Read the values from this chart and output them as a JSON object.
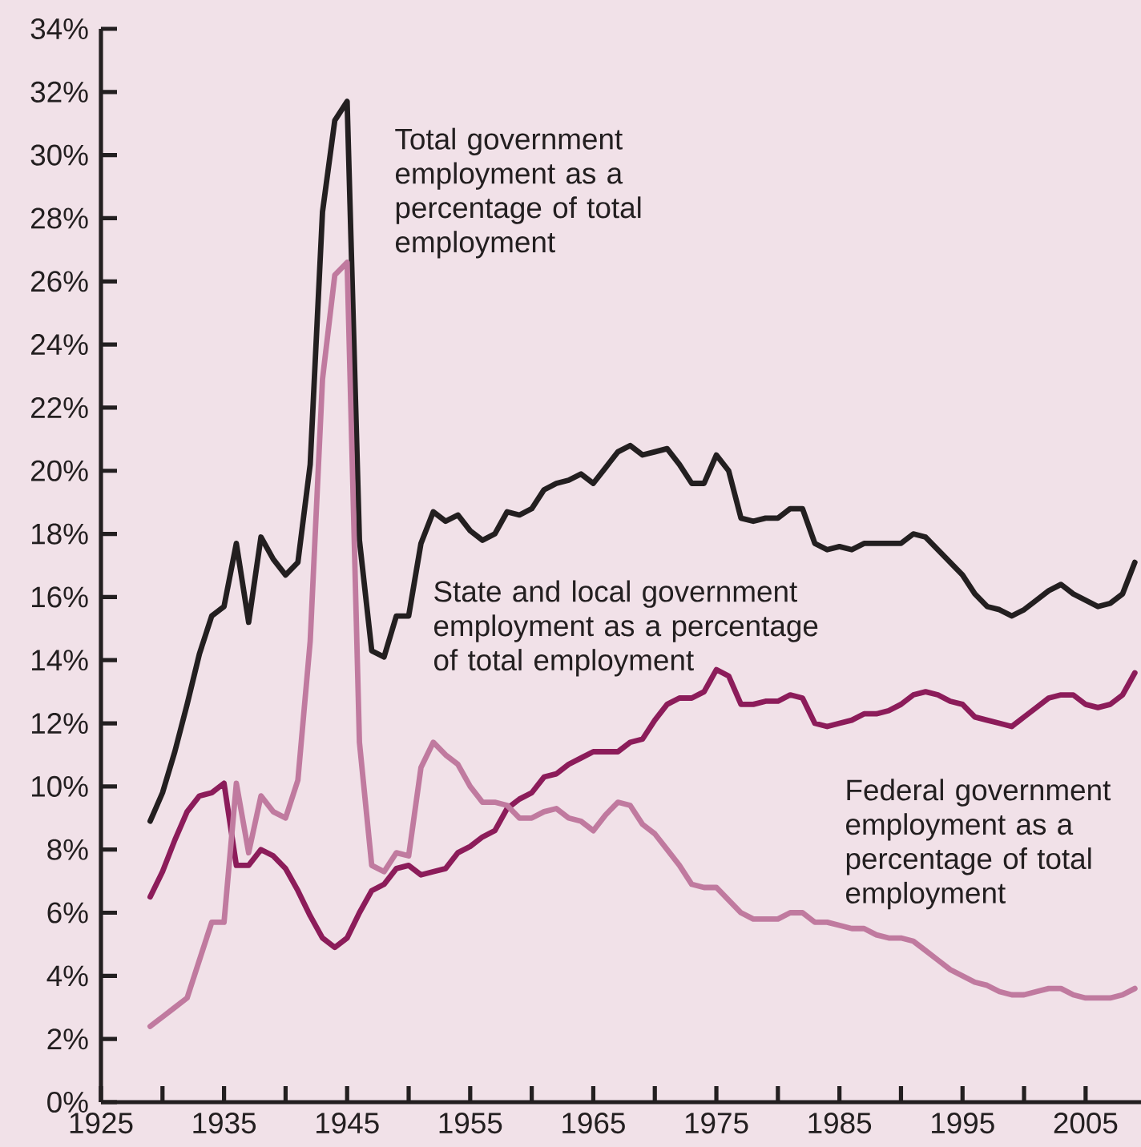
{
  "chart_data": {
    "type": "line",
    "x": [
      1929,
      1930,
      1931,
      1932,
      1933,
      1934,
      1935,
      1936,
      1937,
      1938,
      1939,
      1940,
      1941,
      1942,
      1943,
      1944,
      1945,
      1946,
      1947,
      1948,
      1949,
      1950,
      1951,
      1952,
      1953,
      1954,
      1955,
      1956,
      1957,
      1958,
      1959,
      1960,
      1961,
      1962,
      1963,
      1964,
      1965,
      1966,
      1967,
      1968,
      1969,
      1970,
      1971,
      1972,
      1973,
      1974,
      1975,
      1976,
      1977,
      1978,
      1979,
      1980,
      1981,
      1982,
      1983,
      1984,
      1985,
      1986,
      1987,
      1988,
      1989,
      1990,
      1991,
      1992,
      1993,
      1994,
      1995,
      1996,
      1997,
      1998,
      1999,
      2000,
      2001,
      2002,
      2003,
      2004,
      2005,
      2006,
      2007,
      2008,
      2009
    ],
    "series": [
      {
        "name": "Total government employment as a percentage of total employment",
        "color": "#231f20",
        "values": [
          8.9,
          9.8,
          11.1,
          12.6,
          14.2,
          15.4,
          15.7,
          17.7,
          15.2,
          17.9,
          17.2,
          16.7,
          17.1,
          20.2,
          28.2,
          31.1,
          31.7,
          17.8,
          14.3,
          14.1,
          15.4,
          15.4,
          17.7,
          18.7,
          18.4,
          18.6,
          18.1,
          17.8,
          18.0,
          18.7,
          18.6,
          18.8,
          19.4,
          19.6,
          19.7,
          19.9,
          19.6,
          20.1,
          20.6,
          20.8,
          20.5,
          20.6,
          20.7,
          20.2,
          19.6,
          19.6,
          20.5,
          20.0,
          18.5,
          18.4,
          18.5,
          18.5,
          18.8,
          18.8,
          17.7,
          17.5,
          17.6,
          17.5,
          17.7,
          17.7,
          17.7,
          17.7,
          18.0,
          17.9,
          17.5,
          17.1,
          16.7,
          16.1,
          15.7,
          15.6,
          15.4,
          15.6,
          15.9,
          16.2,
          16.4,
          16.1,
          15.9,
          15.7,
          15.8,
          16.1,
          17.1
        ]
      },
      {
        "name": "State and local government employment as a percentage of total employment",
        "color": "#8c1c5a",
        "values": [
          6.5,
          7.3,
          8.3,
          9.2,
          9.7,
          9.8,
          10.1,
          7.5,
          7.5,
          8.0,
          7.8,
          7.4,
          6.7,
          5.9,
          5.2,
          4.9,
          5.2,
          6.0,
          6.7,
          6.9,
          7.4,
          7.5,
          7.2,
          7.3,
          7.4,
          7.9,
          8.1,
          8.4,
          8.6,
          9.3,
          9.6,
          9.8,
          10.3,
          10.4,
          10.7,
          10.9,
          11.1,
          11.1,
          11.1,
          11.4,
          11.5,
          12.1,
          12.6,
          12.8,
          12.8,
          13.0,
          13.7,
          13.5,
          12.6,
          12.6,
          12.7,
          12.7,
          12.9,
          12.8,
          12.0,
          11.9,
          12.0,
          12.1,
          12.3,
          12.3,
          12.4,
          12.6,
          12.9,
          13.0,
          12.9,
          12.7,
          12.6,
          12.2,
          12.1,
          12.0,
          11.9,
          12.2,
          12.5,
          12.8,
          12.9,
          12.9,
          12.6,
          12.5,
          12.6,
          12.9,
          13.6
        ]
      },
      {
        "name": "Federal government employment as a percentage of total employment",
        "color": "#c07a9f",
        "values": [
          2.4,
          2.7,
          3.0,
          3.3,
          4.5,
          5.7,
          5.7,
          10.1,
          7.9,
          9.7,
          9.2,
          9.0,
          10.2,
          14.6,
          22.9,
          26.2,
          26.6,
          11.4,
          7.5,
          7.3,
          7.9,
          7.8,
          10.6,
          11.4,
          11.0,
          10.7,
          10.0,
          9.5,
          9.5,
          9.4,
          9.0,
          9.0,
          9.2,
          9.3,
          9.0,
          8.9,
          8.6,
          9.1,
          9.5,
          9.4,
          8.8,
          8.5,
          8.0,
          7.5,
          6.9,
          6.8,
          6.8,
          6.4,
          6.0,
          5.8,
          5.8,
          5.8,
          6.0,
          6.0,
          5.7,
          5.7,
          5.6,
          5.5,
          5.5,
          5.3,
          5.2,
          5.2,
          5.1,
          4.8,
          4.5,
          4.2,
          4.0,
          3.8,
          3.7,
          3.5,
          3.4,
          3.4,
          3.5,
          3.6,
          3.6,
          3.4,
          3.3,
          3.3,
          3.3,
          3.4,
          3.6
        ]
      }
    ],
    "xlim": [
      1925,
      2009.5
    ],
    "ylim": [
      0,
      34
    ],
    "xticks": [
      1925,
      {
        "value": 1930,
        "label": null
      },
      1935,
      {
        "value": 1940,
        "label": null
      },
      1945,
      {
        "value": 1950,
        "label": null
      },
      1955,
      {
        "value": 1960,
        "label": null
      },
      1965,
      {
        "value": 1970,
        "label": null
      },
      1975,
      {
        "value": 1980,
        "label": null
      },
      1985,
      {
        "value": 1990,
        "label": null
      },
      1995,
      {
        "value": 2000,
        "label": null
      },
      2005
    ],
    "yticks": [
      {
        "value": 0,
        "label": "0%"
      },
      {
        "value": 2,
        "label": "2%"
      },
      {
        "value": 4,
        "label": "4%"
      },
      {
        "value": 6,
        "label": "6%"
      },
      {
        "value": 8,
        "label": "8%"
      },
      {
        "value": 10,
        "label": "10%"
      },
      {
        "value": 12,
        "label": "12%"
      },
      {
        "value": 14,
        "label": "14%"
      },
      {
        "value": 16,
        "label": "16%"
      },
      {
        "value": 18,
        "label": "18%"
      },
      {
        "value": 20,
        "label": "20%"
      },
      {
        "value": 22,
        "label": "22%"
      },
      {
        "value": 24,
        "label": "24%"
      },
      {
        "value": 26,
        "label": "26%"
      },
      {
        "value": 28,
        "label": "28%"
      },
      {
        "value": 30,
        "label": "30%"
      },
      {
        "value": 32,
        "label": "32%"
      },
      {
        "value": 34,
        "label": "34%"
      }
    ],
    "legend": false
  }
}
